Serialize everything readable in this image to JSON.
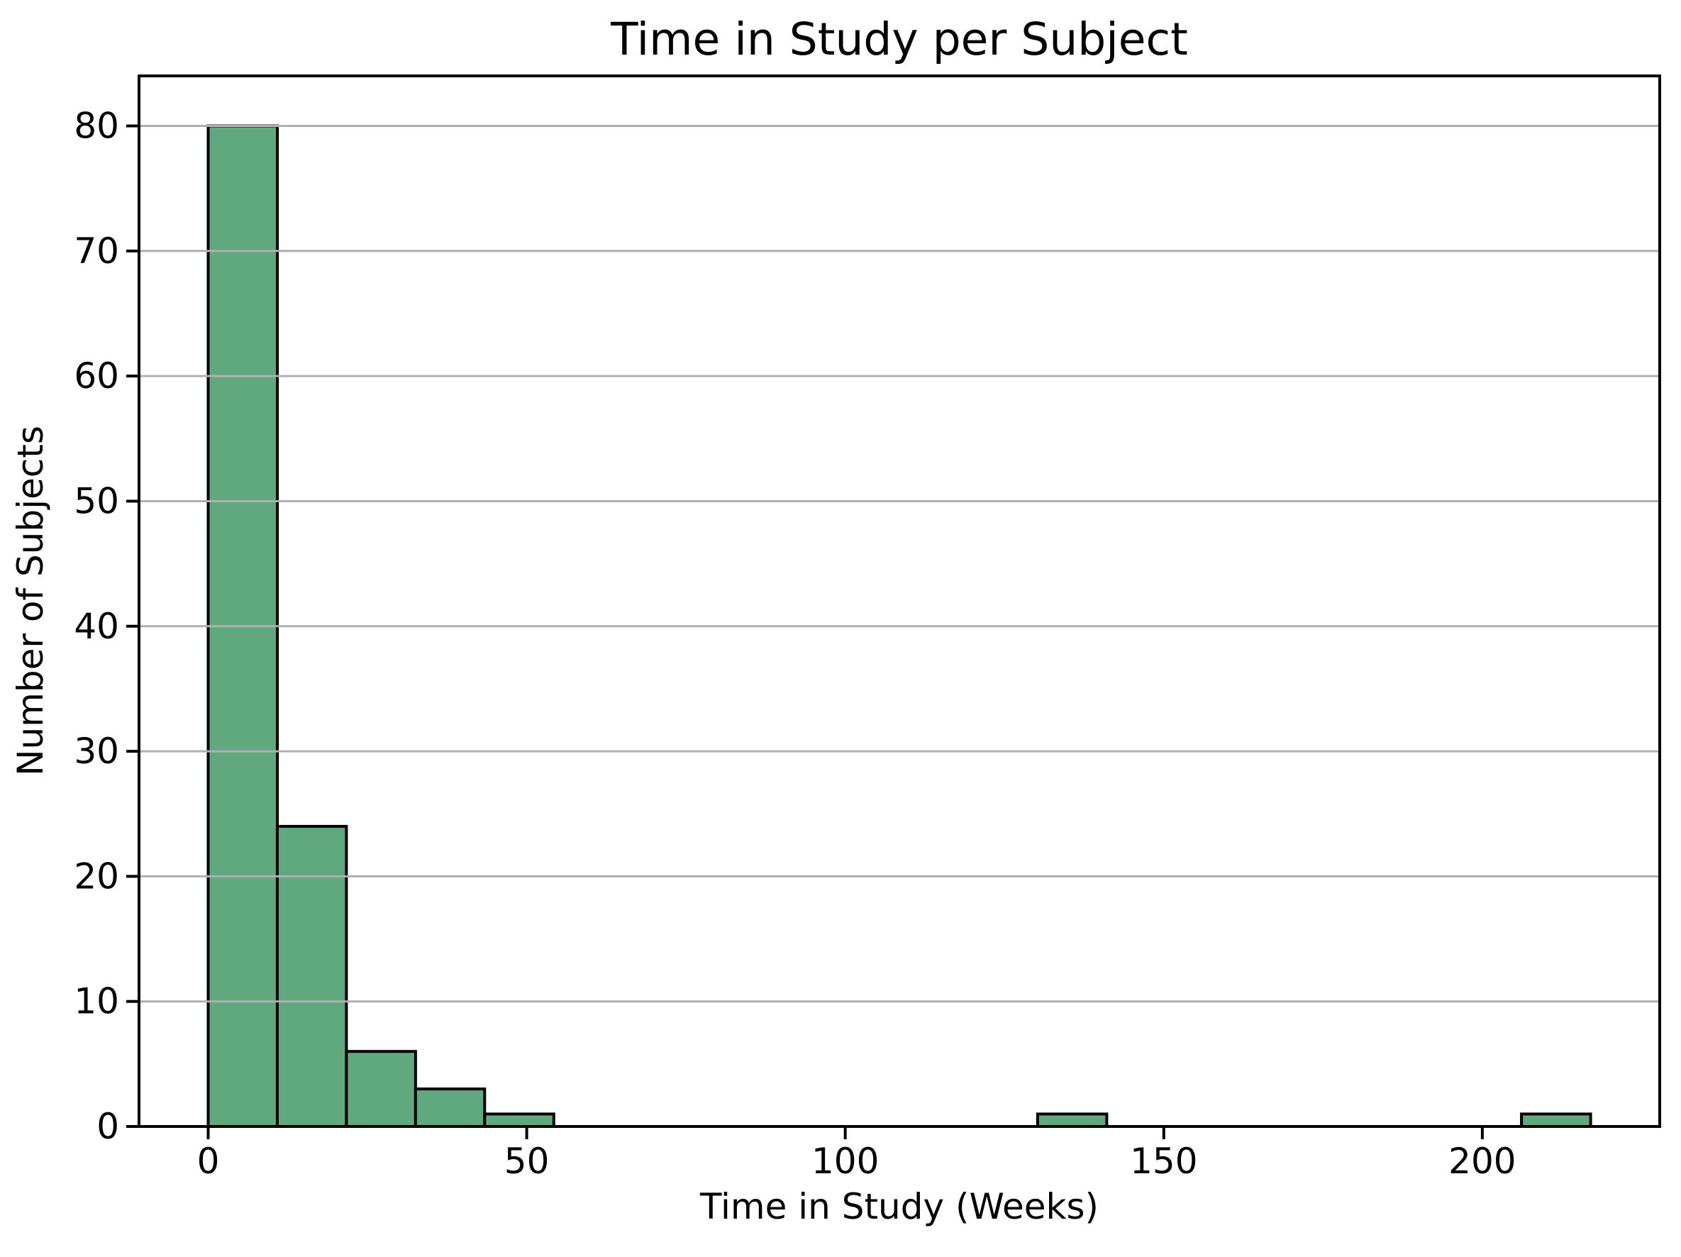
{
  "chart_data": {
    "type": "bar",
    "subtype": "histogram",
    "title": "Time in Study per Subject",
    "xlabel": "Time in Study (Weeks)",
    "ylabel": "Number of Subjects",
    "bin_edges": [
      0,
      10.85,
      21.7,
      32.55,
      43.4,
      54.25,
      65.1,
      75.95,
      86.8,
      97.65,
      108.5,
      119.35,
      130.2,
      141.05,
      151.9,
      162.75,
      173.6,
      184.45,
      195.3,
      206.15,
      217
    ],
    "counts": [
      80,
      24,
      6,
      3,
      1,
      0,
      0,
      0,
      0,
      0,
      0,
      0,
      1,
      0,
      0,
      0,
      0,
      0,
      0,
      1
    ],
    "xticks": [
      0,
      50,
      100,
      150,
      200
    ],
    "yticks": [
      0,
      10,
      20,
      30,
      40,
      50,
      60,
      70,
      80
    ],
    "xlim": [
      -10.85,
      227.85
    ],
    "ylim": [
      0,
      84
    ],
    "grid": "horizontal",
    "grid_above_bars": true,
    "legend": null,
    "colors": {
      "bar_fill": "#60a87d",
      "bar_edge": "#000000",
      "grid_line": "#b0b0b0",
      "axis_line": "#000000",
      "background": "#ffffff"
    }
  }
}
